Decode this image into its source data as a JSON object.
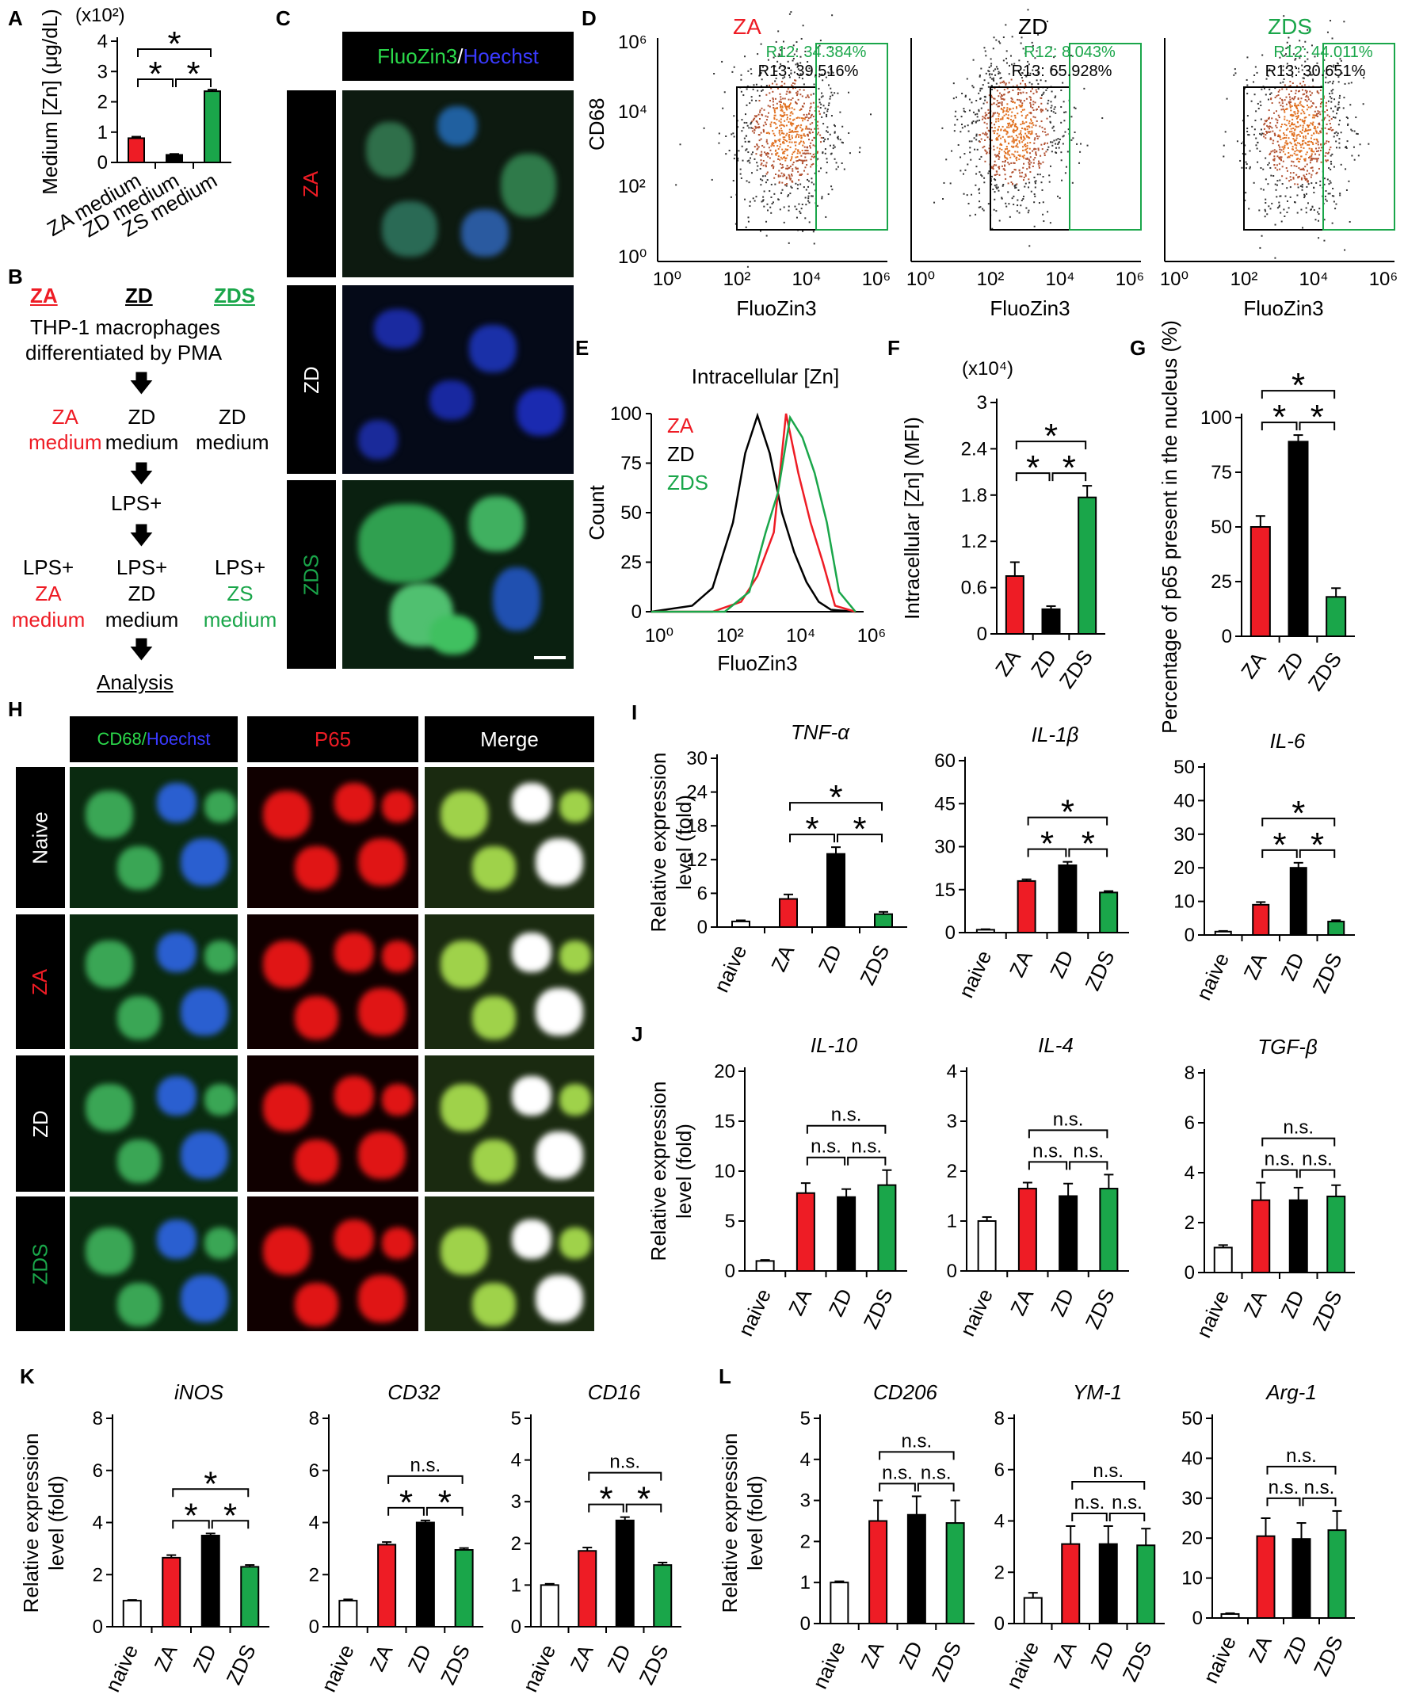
{
  "panels": {
    "A": "A",
    "B": "B",
    "C": "C",
    "D": "D",
    "E": "E",
    "F": "F",
    "G": "G",
    "H": "H",
    "I": "I",
    "J": "J",
    "K": "K",
    "L": "L"
  },
  "colors": {
    "ZA": "#ee1c25",
    "ZD": "#000000",
    "ZDS": "#1aa64a",
    "naive": "#ffffff"
  },
  "panelB": {
    "cols": [
      "ZA",
      "ZD",
      "ZDS"
    ],
    "line1": "THP-1 macrophages",
    "line2": "differentiated by PMA",
    "medium_za": [
      "ZA",
      "medium"
    ],
    "medium_zd": [
      "ZD",
      "medium"
    ],
    "medium_zd2": [
      "ZD",
      "medium"
    ],
    "lps": "LPS+",
    "lps_za": [
      "LPS+",
      "ZA",
      "medium"
    ],
    "lps_zd": [
      "LPS+",
      "ZD",
      "medium"
    ],
    "lps_zs": [
      "LPS+",
      "ZS",
      "medium"
    ],
    "analysis": "Analysis"
  },
  "panelC": {
    "header_green": "FluoZin3",
    "header_sep": " /",
    "header_blue": "Hoechst",
    "rows": [
      "ZA",
      "ZD",
      "ZDS"
    ]
  },
  "panelD": {
    "titles": [
      "ZA",
      "ZD",
      "ZDS"
    ],
    "r12": [
      "R12: 34.384%",
      "R12: 8.043%",
      "R12: 44.011%"
    ],
    "r13": [
      "R13: 39.516%",
      "R13: 65.928%",
      "R13: 30.651%"
    ],
    "ylabel": "CD68",
    "xlabel": "FluoZin3",
    "yticks": [
      "10⁰",
      "10²",
      "10⁴",
      "10⁶"
    ],
    "xticks": [
      "10⁰",
      "10²",
      "10⁴",
      "10⁶"
    ]
  },
  "panelH": {
    "headers": [
      "CD68/",
      "Hoechst",
      "P65",
      "Merge"
    ],
    "rows": [
      "Naive",
      "ZA",
      "ZD",
      "ZDS"
    ]
  },
  "axis_text": {
    "rel_expr_1": "Relative expression",
    "rel_expr_2": "level (fold)"
  },
  "chart_data": [
    {
      "id": "A",
      "type": "bar",
      "categories": [
        "ZA medium",
        "ZD medium",
        "ZS medium"
      ],
      "values": [
        0.8,
        0.25,
        2.35
      ],
      "errors": [
        0.05,
        0.03,
        0.05
      ],
      "ylabel": "Medium [Zn] (μg/dL)",
      "multiplier": "(x10²)",
      "ylim": [
        0,
        4
      ],
      "yticks": [
        0,
        1,
        2,
        3,
        4
      ],
      "sig": [
        "*",
        "*",
        "*"
      ]
    },
    {
      "id": "E",
      "type": "line",
      "title": "Intracellular [Zn]",
      "xlabel": "FluoZin3",
      "ylabel": "Count",
      "ylim": [
        0,
        100
      ],
      "yticks": [
        0,
        25,
        50,
        75,
        100
      ],
      "xticks": [
        "10⁰",
        "10²",
        "10⁴",
        "10⁶"
      ],
      "legend": [
        "ZA",
        "ZD",
        "ZDS"
      ],
      "series": [
        {
          "name": "ZD",
          "color": "#000000",
          "x": [
            0,
            1,
            1.5,
            2,
            2.3,
            2.6,
            2.9,
            3.2,
            3.5,
            3.8,
            4.1,
            4.4,
            5
          ],
          "y": [
            0,
            3,
            12,
            45,
            80,
            99,
            80,
            50,
            30,
            15,
            5,
            1,
            0
          ]
        },
        {
          "name": "ZA",
          "color": "#ee1c25",
          "x": [
            0,
            1.5,
            2.2,
            2.6,
            3.0,
            3.3,
            3.6,
            3.9,
            4.2,
            4.5,
            5
          ],
          "y": [
            0,
            0,
            5,
            18,
            40,
            100,
            70,
            45,
            25,
            3,
            0
          ]
        },
        {
          "name": "ZDS",
          "color": "#1aa64a",
          "x": [
            0,
            1.8,
            2.4,
            2.8,
            3.1,
            3.4,
            3.7,
            4.0,
            4.3,
            4.6,
            5
          ],
          "y": [
            0,
            0,
            10,
            40,
            60,
            98,
            88,
            70,
            45,
            10,
            0
          ]
        }
      ]
    },
    {
      "id": "F",
      "type": "bar",
      "categories": [
        "ZA",
        "ZD",
        "ZDS"
      ],
      "values": [
        0.75,
        0.32,
        1.77
      ],
      "errors": [
        0.18,
        0.04,
        0.15
      ],
      "ylabel": "Intracellular [Zn] (MFI)",
      "multiplier": "(x10⁴)",
      "ylim": [
        0,
        3
      ],
      "yticks": [
        "0",
        "0.6",
        "1.2",
        "1.8",
        "2.4",
        "3"
      ],
      "sig": [
        "*",
        "*",
        "*"
      ]
    },
    {
      "id": "G",
      "type": "bar",
      "categories": [
        "ZA",
        "ZD",
        "ZDS"
      ],
      "values": [
        50,
        89,
        18
      ],
      "errors": [
        5,
        3,
        4
      ],
      "ylabel": "Percentage of p65 present in the nucleus (%)",
      "ylim": [
        0,
        100
      ],
      "yticks": [
        0,
        25,
        50,
        75,
        100
      ],
      "sig": [
        "*",
        "*",
        "*"
      ]
    },
    {
      "id": "I1",
      "type": "bar",
      "title": "TNF-α",
      "categories": [
        "naive",
        "ZA",
        "ZD",
        "ZDS"
      ],
      "values": [
        1,
        5,
        13,
        2.3
      ],
      "errors": [
        0.2,
        0.8,
        1.2,
        0.4
      ],
      "ylim": [
        0,
        30
      ],
      "yticks": [
        0,
        6,
        12,
        18,
        24,
        30
      ],
      "sig": [
        "*",
        "*",
        "*"
      ]
    },
    {
      "id": "I2",
      "type": "bar",
      "title": "IL-1β",
      "categories": [
        "naive",
        "ZA",
        "ZD",
        "ZDS"
      ],
      "values": [
        1,
        18,
        23.5,
        14
      ],
      "errors": [
        0.2,
        0.6,
        1.2,
        0.5
      ],
      "ylim": [
        0,
        60
      ],
      "yticks": [
        0,
        15,
        30,
        45,
        60
      ],
      "sig": [
        "*",
        "*",
        "*"
      ]
    },
    {
      "id": "I3",
      "type": "bar",
      "title": "IL-6",
      "categories": [
        "naive",
        "ZA",
        "ZD",
        "ZDS"
      ],
      "values": [
        1,
        9,
        20,
        4
      ],
      "errors": [
        0.2,
        0.8,
        1.5,
        0.4
      ],
      "ylim": [
        0,
        50
      ],
      "yticks": [
        0,
        10,
        20,
        30,
        40,
        50
      ],
      "sig": [
        "*",
        "*",
        "*"
      ]
    },
    {
      "id": "J1",
      "type": "bar",
      "title": "IL-10",
      "categories": [
        "naive",
        "ZA",
        "ZD",
        "ZDS"
      ],
      "values": [
        1,
        7.8,
        7.4,
        8.6
      ],
      "errors": [
        0.1,
        1,
        0.8,
        1.5
      ],
      "ylim": [
        0,
        20
      ],
      "yticks": [
        0,
        5,
        10,
        15,
        20
      ],
      "sig": [
        "n.s.",
        "n.s.",
        "n.s."
      ]
    },
    {
      "id": "J2",
      "type": "bar",
      "title": "IL-4",
      "categories": [
        "naive",
        "ZA",
        "ZD",
        "ZDS"
      ],
      "values": [
        1,
        1.65,
        1.5,
        1.65
      ],
      "errors": [
        0.08,
        0.12,
        0.25,
        0.28
      ],
      "ylim": [
        0,
        4
      ],
      "yticks": [
        0,
        1,
        2,
        3,
        4
      ],
      "sig": [
        "n.s.",
        "n.s.",
        "n.s."
      ]
    },
    {
      "id": "J3",
      "type": "bar",
      "title": "TGF-β",
      "categories": [
        "naive",
        "ZA",
        "ZD",
        "ZDS"
      ],
      "values": [
        1,
        2.9,
        2.9,
        3.05
      ],
      "errors": [
        0.1,
        0.7,
        0.5,
        0.45
      ],
      "ylim": [
        0,
        8
      ],
      "yticks": [
        0,
        2,
        4,
        6,
        8
      ],
      "sig": [
        "n.s.",
        "n.s.",
        "n.s."
      ]
    },
    {
      "id": "K1",
      "type": "bar",
      "title": "iNOS",
      "categories": [
        "naive",
        "ZA",
        "ZD",
        "ZDS"
      ],
      "values": [
        1,
        2.65,
        3.5,
        2.3
      ],
      "errors": [
        0.03,
        0.1,
        0.08,
        0.07
      ],
      "ylim": [
        0,
        8
      ],
      "yticks": [
        0,
        2,
        4,
        6,
        8
      ],
      "sig": [
        "*",
        "*",
        "*"
      ]
    },
    {
      "id": "K2",
      "type": "bar",
      "title": "CD32",
      "categories": [
        "naive",
        "ZA",
        "ZD",
        "ZDS"
      ],
      "values": [
        1,
        3.15,
        4.0,
        2.95
      ],
      "errors": [
        0.05,
        0.1,
        0.08,
        0.07
      ],
      "ylim": [
        0,
        8
      ],
      "yticks": [
        0,
        2,
        4,
        6,
        8
      ],
      "sig": [
        "*",
        "*",
        "n.s."
      ]
    },
    {
      "id": "K3",
      "type": "bar",
      "title": "CD16",
      "categories": [
        "naive",
        "ZA",
        "ZD",
        "ZDS"
      ],
      "values": [
        1,
        1.82,
        2.55,
        1.48
      ],
      "errors": [
        0.03,
        0.08,
        0.08,
        0.06
      ],
      "ylim": [
        0,
        5
      ],
      "yticks": [
        0,
        1,
        2,
        3,
        4,
        5
      ],
      "sig": [
        "*",
        "*",
        "n.s."
      ]
    },
    {
      "id": "L1",
      "type": "bar",
      "title": "CD206",
      "categories": [
        "naive",
        "ZA",
        "ZD",
        "ZDS"
      ],
      "values": [
        1,
        2.5,
        2.65,
        2.45
      ],
      "errors": [
        0.03,
        0.5,
        0.45,
        0.55
      ],
      "ylim": [
        0,
        5
      ],
      "yticks": [
        0,
        1,
        2,
        3,
        4,
        5
      ],
      "sig": [
        "n.s.",
        "n.s.",
        "n.s."
      ]
    },
    {
      "id": "L2",
      "type": "bar",
      "title": "YM-1",
      "categories": [
        "naive",
        "ZA",
        "ZD",
        "ZDS"
      ],
      "values": [
        1,
        3.1,
        3.1,
        3.05
      ],
      "errors": [
        0.2,
        0.7,
        0.7,
        0.65
      ],
      "ylim": [
        0,
        8
      ],
      "yticks": [
        0,
        2,
        4,
        6,
        8
      ],
      "sig": [
        "n.s.",
        "n.s.",
        "n.s."
      ]
    },
    {
      "id": "L3",
      "type": "bar",
      "title": "Arg-1",
      "categories": [
        "naive",
        "ZA",
        "ZD",
        "ZDS"
      ],
      "values": [
        1,
        20.5,
        19.8,
        22
      ],
      "errors": [
        0.2,
        4.5,
        4,
        4.8
      ],
      "ylim": [
        0,
        50
      ],
      "yticks": [
        0,
        10,
        20,
        30,
        40,
        50
      ],
      "sig": [
        "n.s.",
        "n.s.",
        "n.s."
      ]
    }
  ]
}
